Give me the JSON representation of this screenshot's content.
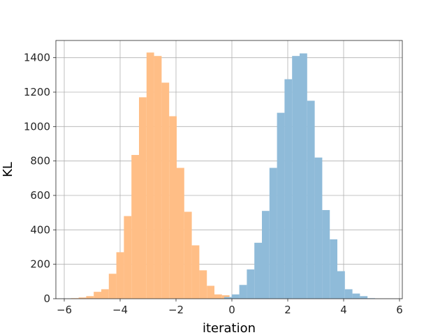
{
  "chart_data": {
    "type": "bar",
    "subtype": "overlapping-histogram",
    "title": "",
    "xlabel": "iteration",
    "ylabel": "KL",
    "xlim": [
      -6.3,
      6.1
    ],
    "ylim": [
      0,
      1500
    ],
    "xticks": [
      -6,
      -4,
      -2,
      0,
      2,
      4,
      6
    ],
    "yticks": [
      0,
      200,
      400,
      600,
      800,
      1000,
      1200,
      1400
    ],
    "grid": true,
    "legend": "none",
    "series": [
      {
        "color": "#ffbe86",
        "bin_width": 0.27,
        "bins": [
          {
            "x": -5.62,
            "count": 3
          },
          {
            "x": -5.35,
            "count": 7
          },
          {
            "x": -5.08,
            "count": 15
          },
          {
            "x": -4.81,
            "count": 40
          },
          {
            "x": -4.54,
            "count": 55
          },
          {
            "x": -4.27,
            "count": 145
          },
          {
            "x": -4.0,
            "count": 270
          },
          {
            "x": -3.73,
            "count": 480
          },
          {
            "x": -3.46,
            "count": 835
          },
          {
            "x": -3.19,
            "count": 1170
          },
          {
            "x": -2.92,
            "count": 1430
          },
          {
            "x": -2.65,
            "count": 1410
          },
          {
            "x": -2.38,
            "count": 1255
          },
          {
            "x": -2.11,
            "count": 1060
          },
          {
            "x": -1.84,
            "count": 760
          },
          {
            "x": -1.57,
            "count": 505
          },
          {
            "x": -1.3,
            "count": 310
          },
          {
            "x": -1.03,
            "count": 165
          },
          {
            "x": -0.76,
            "count": 75
          },
          {
            "x": -0.49,
            "count": 25
          },
          {
            "x": -0.22,
            "count": 20
          }
        ]
      },
      {
        "color": "#8fbbd9",
        "bin_width": 0.27,
        "bins": [
          {
            "x": -0.14,
            "count": 10
          },
          {
            "x": 0.13,
            "count": 25
          },
          {
            "x": 0.4,
            "count": 80
          },
          {
            "x": 0.67,
            "count": 170
          },
          {
            "x": 0.94,
            "count": 325
          },
          {
            "x": 1.21,
            "count": 510
          },
          {
            "x": 1.48,
            "count": 760
          },
          {
            "x": 1.75,
            "count": 1080
          },
          {
            "x": 2.02,
            "count": 1275
          },
          {
            "x": 2.29,
            "count": 1410
          },
          {
            "x": 2.56,
            "count": 1425
          },
          {
            "x": 2.83,
            "count": 1150
          },
          {
            "x": 3.1,
            "count": 820
          },
          {
            "x": 3.37,
            "count": 515
          },
          {
            "x": 3.64,
            "count": 345
          },
          {
            "x": 3.91,
            "count": 160
          },
          {
            "x": 4.18,
            "count": 55
          },
          {
            "x": 4.45,
            "count": 30
          },
          {
            "x": 4.72,
            "count": 15
          },
          {
            "x": 4.99,
            "count": 3
          }
        ]
      }
    ]
  }
}
